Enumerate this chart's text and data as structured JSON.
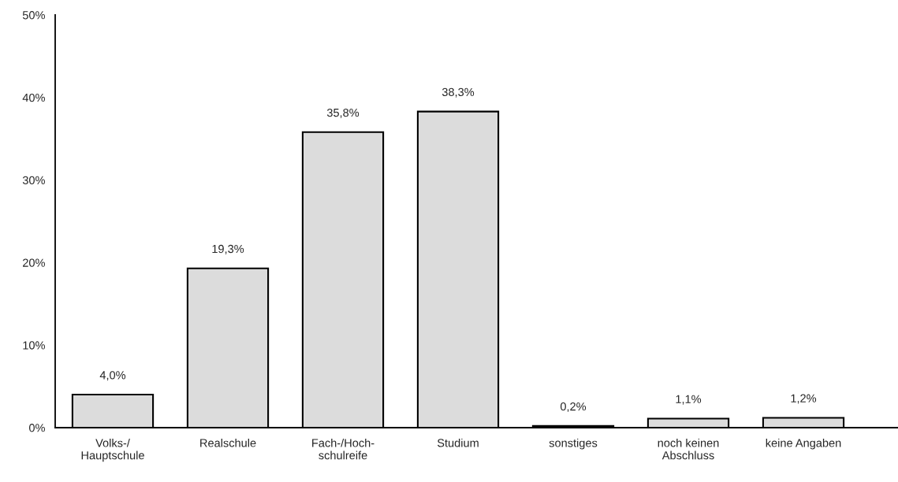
{
  "chart_data": {
    "type": "bar",
    "categories": [
      "Volks-/\nHauptschule",
      "Realschule",
      "Fach-/Hoch-\nschulreife",
      "Studium",
      "sonstiges",
      "noch keinen\nAbschluss",
      "keine Angaben"
    ],
    "values": [
      4.0,
      19.3,
      35.8,
      38.3,
      0.2,
      1.1,
      1.2
    ],
    "value_labels": [
      "4,0%",
      "19,3%",
      "35,8%",
      "38,3%",
      "0,2%",
      "1,1%",
      "1,2%"
    ],
    "color": "#dcdcdc",
    "ylim": [
      0,
      50
    ],
    "yticks": [
      {
        "value": 0,
        "label": "0%"
      },
      {
        "value": 10,
        "label": "10%"
      },
      {
        "value": 20,
        "label": "20%"
      },
      {
        "value": 30,
        "label": "30%"
      },
      {
        "value": 40,
        "label": "40%"
      },
      {
        "value": 50,
        "label": "50%"
      }
    ],
    "grid": false,
    "legend": false
  }
}
